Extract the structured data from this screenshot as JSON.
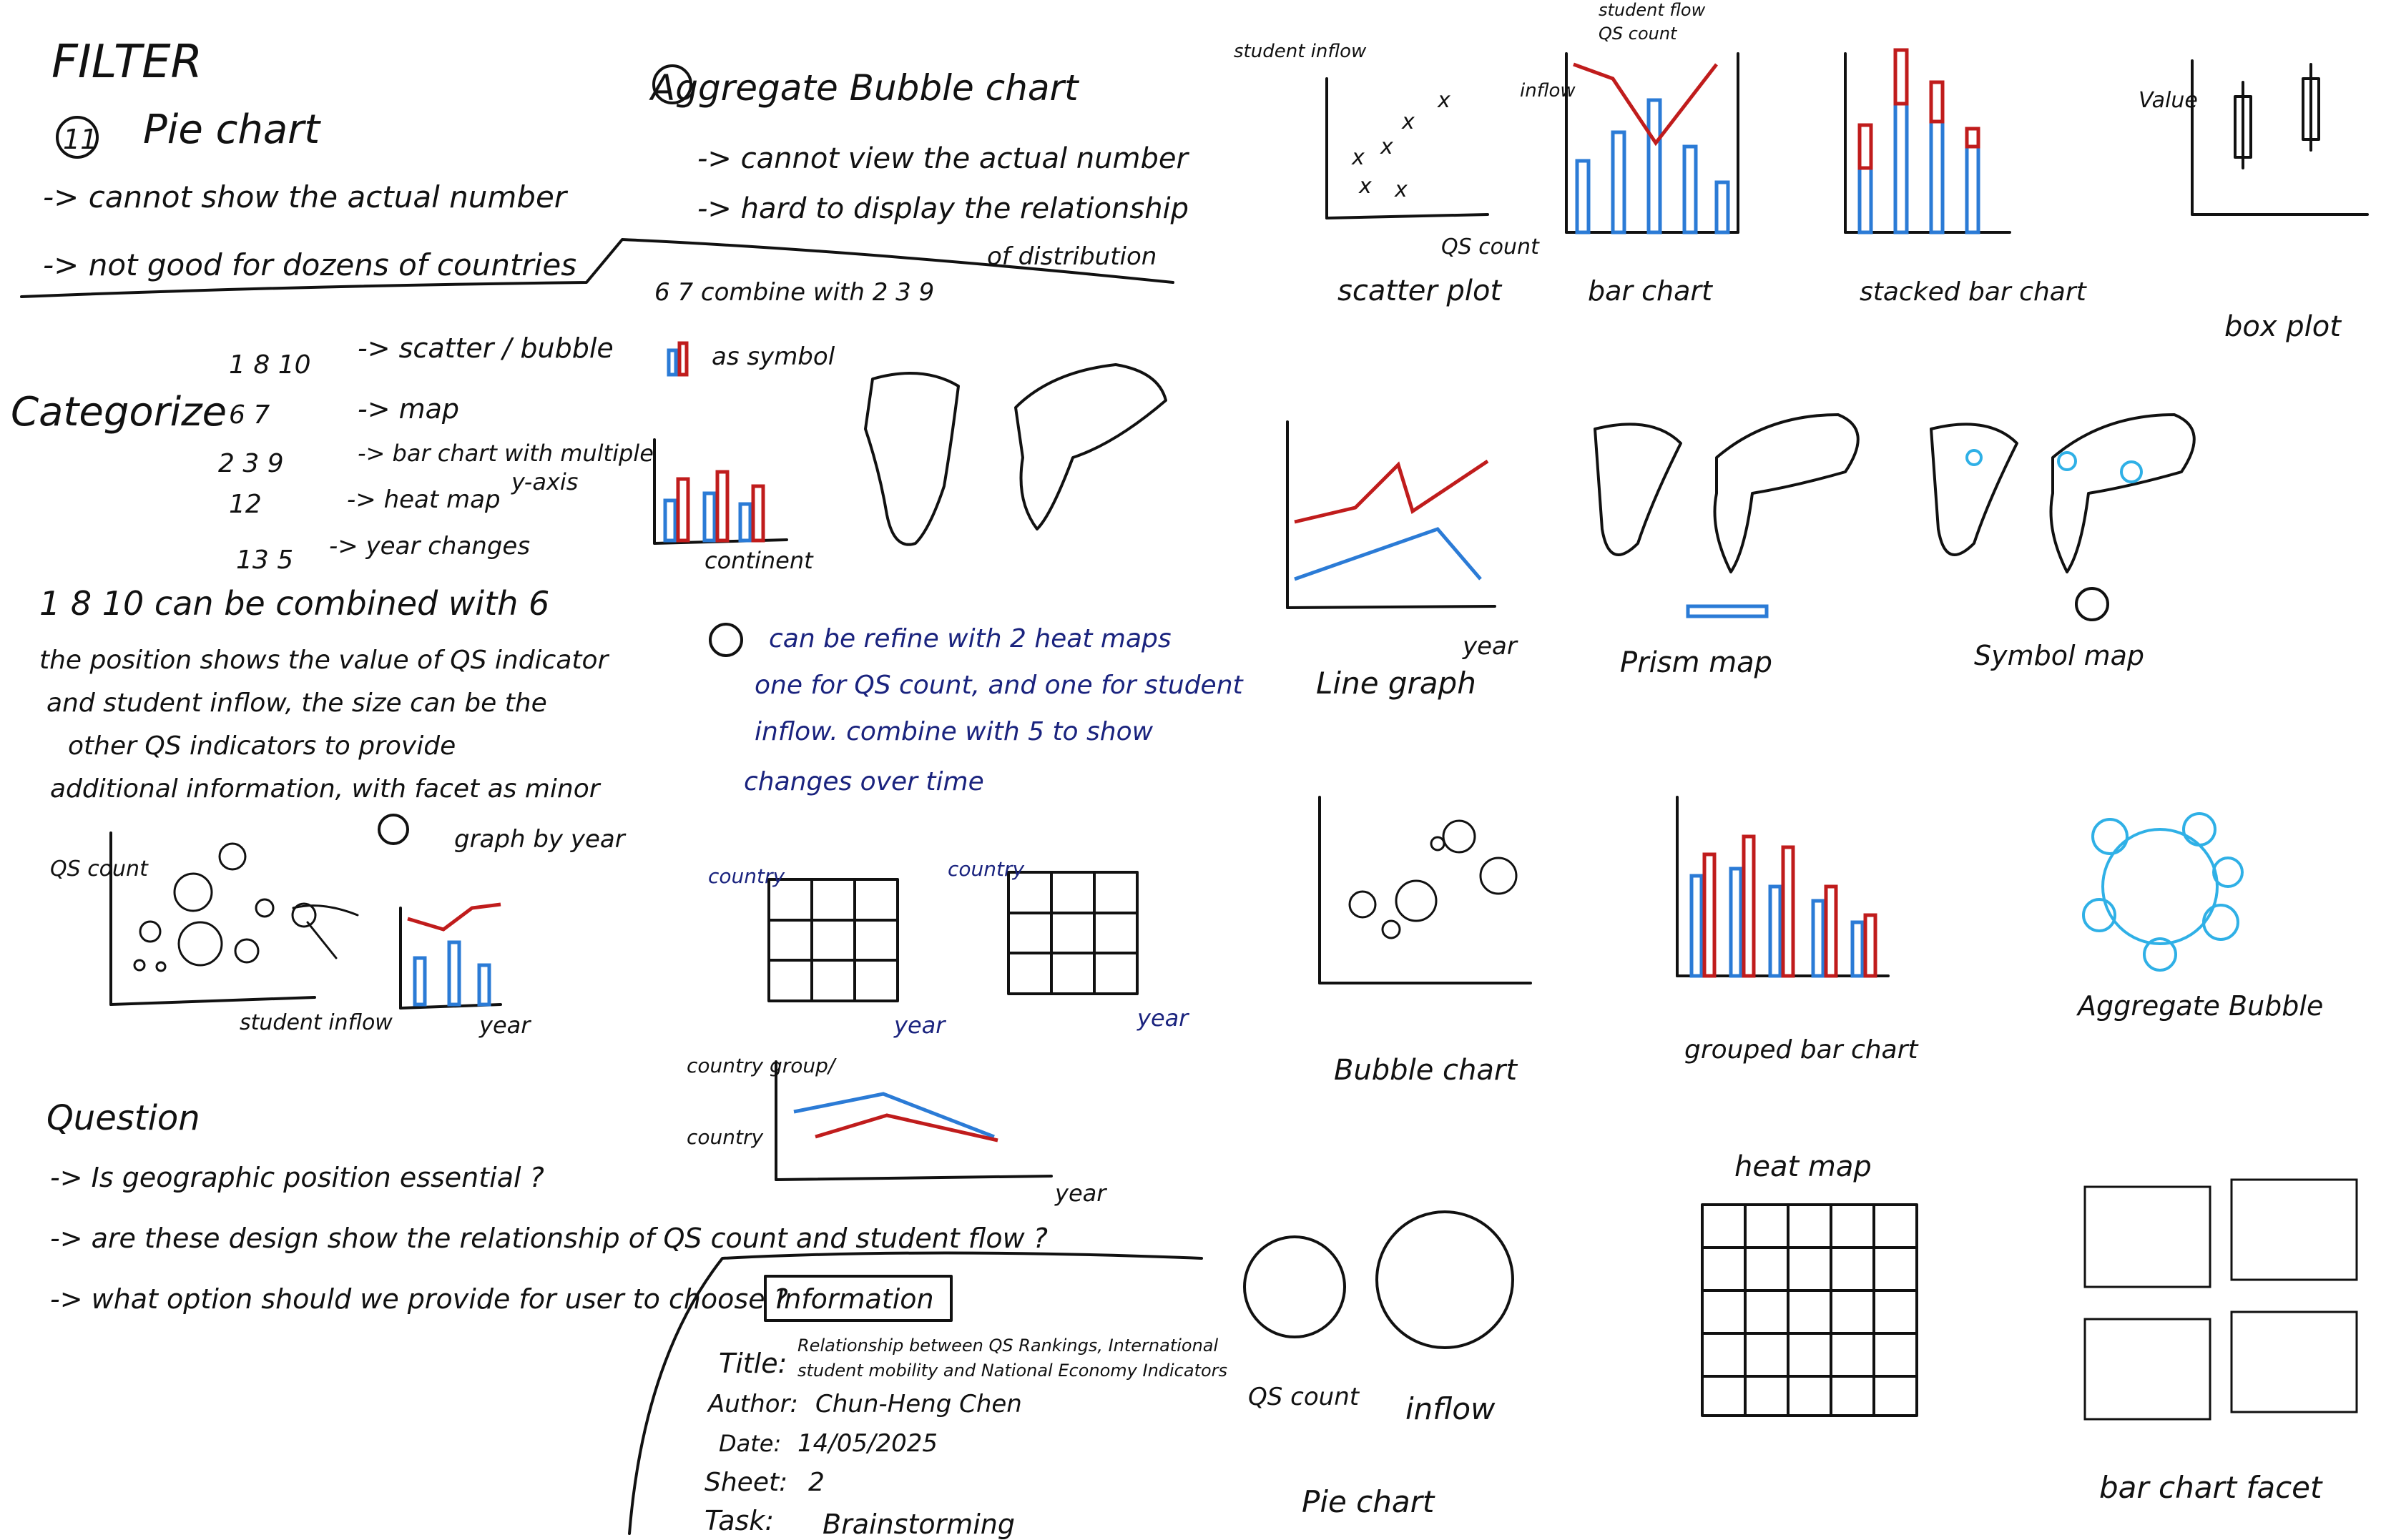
{
  "filter": {
    "heading": "FILTER",
    "number": "11",
    "chart_name": "Pie chart",
    "notes": [
      "-> cannot show the actual number",
      "-> not good for dozens of countries"
    ]
  },
  "aggregate": {
    "heading": "Aggregate Bubble chart",
    "notes": [
      "-> cannot view the actual number",
      "-> hard to display the relationship",
      "of distribution"
    ]
  },
  "categorize": {
    "heading": "Categorize",
    "groups": [
      {
        "ids": "1 8 10",
        "label": "-> scatter / bubble"
      },
      {
        "ids": "6 7",
        "label": "-> map"
      },
      {
        "ids": "2 3 9",
        "label": "-> bar chart with multiple",
        "label2": "y-axis"
      },
      {
        "ids": "12",
        "label": "-> heat map"
      },
      {
        "ids": "13 5",
        "label": "-> year changes"
      }
    ]
  },
  "combined": {
    "heading": "1 8 10 can be combined with 6",
    "notes": [
      "the position shows the value of QS indicator",
      "and student inflow, the size can be the",
      "other QS indicators to provide",
      "additional information, with facet as minor"
    ],
    "mini_y": "QS count",
    "mini_x": "student inflow",
    "facet_label": "graph by year",
    "facet_year": "year"
  },
  "question": {
    "heading": "Question",
    "items": [
      "-> Is geographic position essential ?",
      "-> are these design show the relationship of QS count and student flow ?",
      "-> what option should we provide for user to choose ?"
    ]
  },
  "combine": {
    "label": "6 7 combine with 2 3 9",
    "symbol": "as symbol",
    "xlabel": "continent"
  },
  "heatmap_note": {
    "lines": [
      "can be refine with 2 heat maps",
      "one for QS count, and one for student",
      "inflow. combine with 5 to show",
      "changes over time"
    ],
    "country": "country",
    "country_plain": "country",
    "group": "country group/",
    "year": "year"
  },
  "information": {
    "heading": "Information",
    "title_key": "Title:",
    "title_lines": [
      "Relationship between QS Rankings, International",
      "student mobility and National Economy Indicators"
    ],
    "author_key": "Author:",
    "author": "Chun-Heng Chen",
    "date_key": "Date:",
    "date": "14/05/2025",
    "sheet_key": "Sheet:",
    "sheet": "2",
    "task_key": "Task:",
    "task": "Brainstorming"
  },
  "sketches": {
    "legend": {
      "flow": "student flow",
      "qs": "QS count"
    },
    "s1": {
      "title": "scatter plot",
      "ylabel": "student inflow",
      "xlabel": "QS count"
    },
    "s2": {
      "title": "bar chart",
      "ylabel": "inflow"
    },
    "s3": {
      "title": "stacked bar chart"
    },
    "s4": {
      "title": "box plot",
      "ylabel": "Value"
    },
    "s5": {
      "title": "Line graph",
      "xlabel": "year"
    },
    "s6": {
      "title": "Prism map"
    },
    "s7": {
      "title": "Symbol map"
    },
    "s8": {
      "title": "Bubble chart"
    },
    "s9": {
      "title": "grouped bar chart"
    },
    "s10": {
      "title": "Aggregate Bubble"
    },
    "s11": {
      "title": "Pie chart",
      "label_qs": "QS count",
      "label_inflow": "inflow"
    },
    "s12": {
      "title": "heat map"
    },
    "s13": {
      "title": "bar chart facet"
    }
  }
}
